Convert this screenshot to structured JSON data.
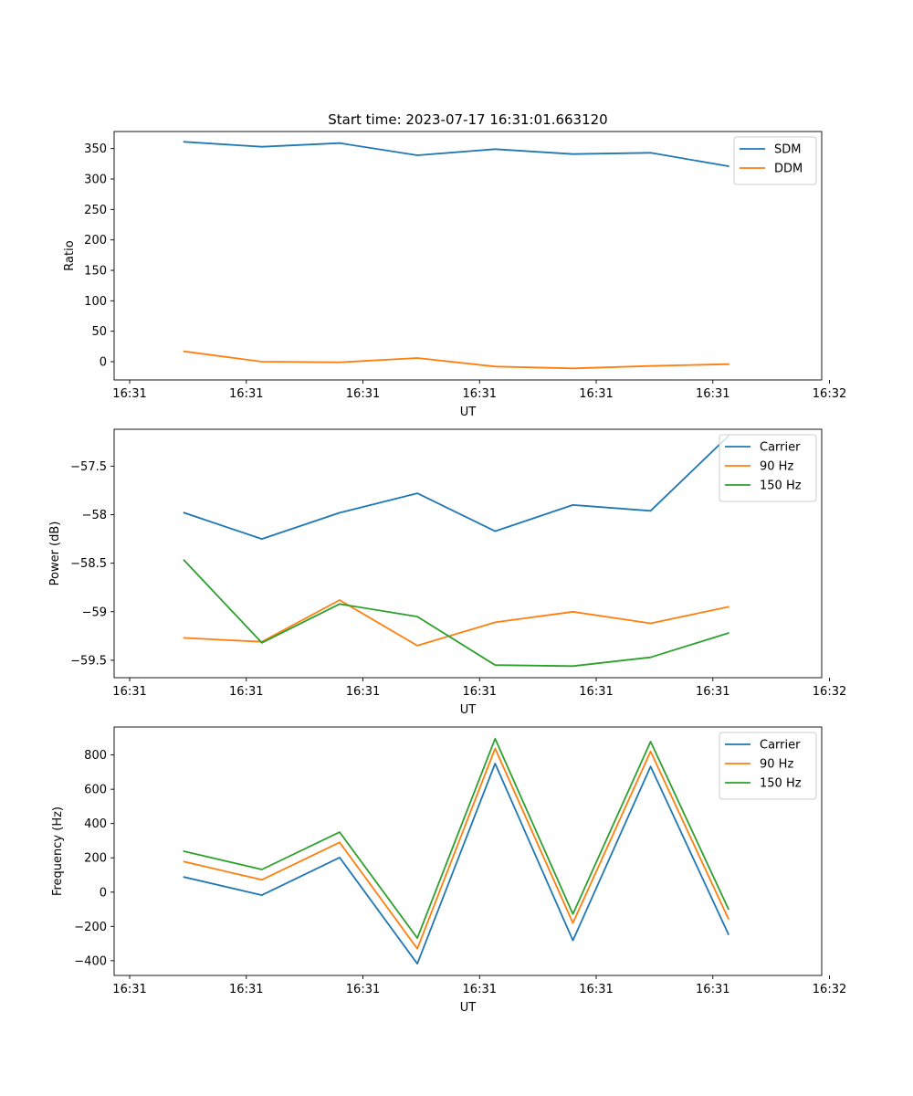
{
  "figure": {
    "title": "Start time: 2023-07-17 16:31:01.663120"
  },
  "colors": {
    "c0": "#1f77b4",
    "c1": "#ff7f0e",
    "c2": "#2ca02c",
    "axes": "#000000",
    "legend_border": "#cccccc"
  },
  "chart_data": [
    {
      "type": "line",
      "name": "ratio",
      "title": "Start time: 2023-07-17 16:31:01.663120",
      "xlabel": "UT",
      "ylabel": "Ratio",
      "xlim": [
        -0.5,
        8.6
      ],
      "ylim": [
        -30,
        378
      ],
      "x_ticks": [
        {
          "value": -0.3,
          "label": "16:31"
        },
        {
          "value": 1.2,
          "label": "16:31"
        },
        {
          "value": 2.7,
          "label": "16:31"
        },
        {
          "value": 4.2,
          "label": "16:31"
        },
        {
          "value": 5.7,
          "label": "16:31"
        },
        {
          "value": 7.2,
          "label": "16:31"
        },
        {
          "value": 8.7,
          "label": "16:32"
        }
      ],
      "y_ticks": [
        0,
        50,
        100,
        150,
        200,
        250,
        300,
        350
      ],
      "x": [
        0.4,
        1.4,
        2.4,
        3.4,
        4.4,
        5.4,
        6.4,
        7.4
      ],
      "legend_position": "top-right",
      "series": [
        {
          "name": "SDM",
          "color_key": "c0",
          "values": [
            361,
            353,
            359,
            339,
            349,
            341,
            343,
            321
          ]
        },
        {
          "name": "DDM",
          "color_key": "c1",
          "values": [
            17,
            0,
            -1,
            6,
            -8,
            -11,
            -7,
            -4
          ]
        }
      ]
    },
    {
      "type": "line",
      "name": "power",
      "title": "",
      "xlabel": "UT",
      "ylabel": "Power (dB)",
      "xlim": [
        -0.5,
        8.6
      ],
      "ylim": [
        -59.68,
        -57.12
      ],
      "x_ticks": [
        {
          "value": -0.3,
          "label": "16:31"
        },
        {
          "value": 1.2,
          "label": "16:31"
        },
        {
          "value": 2.7,
          "label": "16:31"
        },
        {
          "value": 4.2,
          "label": "16:31"
        },
        {
          "value": 5.7,
          "label": "16:31"
        },
        {
          "value": 7.2,
          "label": "16:31"
        },
        {
          "value": 8.7,
          "label": "16:32"
        }
      ],
      "y_ticks": [
        -57.5,
        -58.0,
        -58.5,
        -59.0,
        -59.5
      ],
      "x": [
        0.4,
        1.4,
        2.4,
        3.4,
        4.4,
        5.4,
        6.4,
        7.4
      ],
      "legend_position": "top-right",
      "series": [
        {
          "name": "Carrier",
          "color_key": "c0",
          "values": [
            -57.98,
            -58.25,
            -57.98,
            -57.78,
            -58.17,
            -57.9,
            -57.96,
            -57.19
          ]
        },
        {
          "name": "90 Hz",
          "color_key": "c1",
          "values": [
            -59.27,
            -59.31,
            -58.88,
            -59.35,
            -59.11,
            -59.0,
            -59.12,
            -58.95
          ]
        },
        {
          "name": "150 Hz",
          "color_key": "c2",
          "values": [
            -58.47,
            -59.32,
            -58.92,
            -59.05,
            -59.55,
            -59.56,
            -59.47,
            -59.22
          ]
        }
      ]
    },
    {
      "type": "line",
      "name": "frequency",
      "title": "",
      "xlabel": "UT",
      "ylabel": "Frequency (Hz)",
      "xlim": [
        -0.5,
        8.6
      ],
      "ylim": [
        -486,
        963
      ],
      "x_ticks": [
        {
          "value": -0.3,
          "label": "16:31"
        },
        {
          "value": 1.2,
          "label": "16:31"
        },
        {
          "value": 2.7,
          "label": "16:31"
        },
        {
          "value": 4.2,
          "label": "16:31"
        },
        {
          "value": 5.7,
          "label": "16:31"
        },
        {
          "value": 7.2,
          "label": "16:31"
        },
        {
          "value": 8.7,
          "label": "16:32"
        }
      ],
      "y_ticks": [
        800,
        600,
        400,
        200,
        0,
        -200,
        -400
      ],
      "x": [
        0.4,
        1.4,
        2.4,
        3.4,
        4.4,
        5.4,
        6.4,
        7.4
      ],
      "legend_position": "top-right",
      "series": [
        {
          "name": "Carrier",
          "color_key": "c0",
          "values": [
            88,
            -18,
            202,
            -418,
            750,
            -282,
            733,
            -245
          ]
        },
        {
          "name": "90 Hz",
          "color_key": "c1",
          "values": [
            178,
            72,
            290,
            -330,
            838,
            -180,
            820,
            -155
          ]
        },
        {
          "name": "150 Hz",
          "color_key": "c2",
          "values": [
            238,
            132,
            350,
            -268,
            895,
            -128,
            878,
            -98
          ]
        }
      ]
    }
  ]
}
